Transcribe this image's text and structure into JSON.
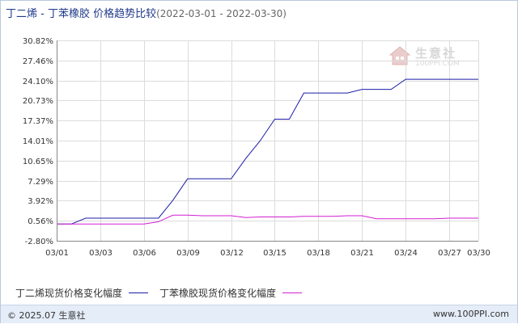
{
  "title": {
    "main": "丁二烯 - 丁苯橡胶 价格趋势比较",
    "range": "(2022-03-01 - 2022-03-30)"
  },
  "chart_data": {
    "type": "line",
    "xlim": [
      1,
      30
    ],
    "ylim": [
      -2.8,
      30.82
    ],
    "y_ticks": [
      "30.82%",
      "27.46%",
      "24.10%",
      "20.73%",
      "17.37%",
      "14.01%",
      "10.65%",
      "7.29%",
      "3.92%",
      "0.56%",
      "-2.80%"
    ],
    "y_tick_values": [
      30.82,
      27.46,
      24.1,
      20.73,
      17.37,
      14.01,
      10.65,
      7.29,
      3.92,
      0.56,
      -2.8
    ],
    "x_ticks": [
      "03/01",
      "03/03",
      "03/06",
      "03/09",
      "03/12",
      "03/15",
      "03/18",
      "03/21",
      "03/24",
      "03/27",
      "03/30"
    ],
    "x_tick_values": [
      1,
      4,
      7,
      10,
      13,
      16,
      19,
      22,
      25,
      28,
      31
    ],
    "grid": true,
    "legend_position": "bottom-left",
    "series": [
      {
        "name": "丁二烯现货价格变化幅度",
        "color": "#1c1ca8",
        "points": [
          [
            1,
            0
          ],
          [
            2,
            0
          ],
          [
            3,
            1
          ],
          [
            4,
            1
          ],
          [
            5,
            1
          ],
          [
            6,
            1
          ],
          [
            7,
            1
          ],
          [
            8,
            1
          ],
          [
            9,
            4
          ],
          [
            10,
            7.6
          ],
          [
            11,
            7.6
          ],
          [
            12,
            7.6
          ],
          [
            13,
            7.6
          ],
          [
            14,
            11
          ],
          [
            15,
            14
          ],
          [
            16,
            17.6
          ],
          [
            17,
            17.6
          ],
          [
            18,
            22
          ],
          [
            19,
            22
          ],
          [
            20,
            22
          ],
          [
            21,
            22
          ],
          [
            22,
            22.6
          ],
          [
            23,
            22.6
          ],
          [
            24,
            22.6
          ],
          [
            25,
            24.3
          ],
          [
            26,
            24.3
          ],
          [
            27,
            24.3
          ],
          [
            28,
            24.3
          ],
          [
            29,
            24.3
          ],
          [
            30,
            24.3
          ]
        ]
      },
      {
        "name": "丁苯橡胶现货价格变化幅度",
        "color": "#d21fd2",
        "points": [
          [
            1,
            0
          ],
          [
            2,
            0
          ],
          [
            3,
            0
          ],
          [
            4,
            0
          ],
          [
            5,
            0
          ],
          [
            6,
            0
          ],
          [
            7,
            0
          ],
          [
            8,
            0.4
          ],
          [
            9,
            1.5
          ],
          [
            10,
            1.5
          ],
          [
            11,
            1.4
          ],
          [
            12,
            1.4
          ],
          [
            13,
            1.4
          ],
          [
            14,
            1.1
          ],
          [
            15,
            1.2
          ],
          [
            16,
            1.2
          ],
          [
            17,
            1.2
          ],
          [
            18,
            1.3
          ],
          [
            19,
            1.3
          ],
          [
            20,
            1.3
          ],
          [
            21,
            1.4
          ],
          [
            22,
            1.4
          ],
          [
            23,
            0.9
          ],
          [
            24,
            0.9
          ],
          [
            25,
            0.9
          ],
          [
            26,
            0.9
          ],
          [
            27,
            0.9
          ],
          [
            28,
            1.0
          ],
          [
            29,
            1.0
          ],
          [
            30,
            1.0
          ]
        ]
      }
    ]
  },
  "legend": {
    "series1": "丁二烯现货价格变化幅度",
    "series2": "丁苯橡胶现货价格变化幅度"
  },
  "footer": {
    "copyright": "© 2025.07 生意社",
    "site": "www.100PPI.com"
  },
  "watermark": {
    "text": "生意社",
    "url": "100PPI.COM"
  }
}
